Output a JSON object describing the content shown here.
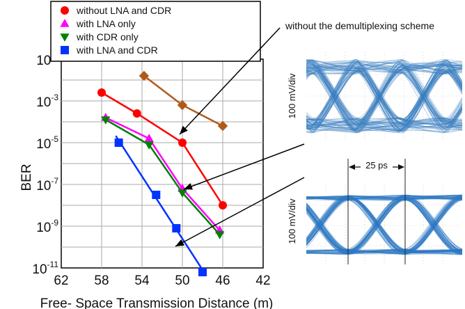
{
  "chart_data": {
    "type": "scatter",
    "title": "",
    "xlabel": "Free- Space Transmission Distance (m)",
    "ylabel": "BER",
    "xlim": [
      62,
      42
    ],
    "xticks": [
      "62",
      "58",
      "54",
      "50",
      "46",
      "42"
    ],
    "ylim_log10": [
      -11,
      -1
    ],
    "yticks": [
      {
        "base": "10",
        "exp": "-1",
        "value_log10": -1
      },
      {
        "base": "10",
        "exp": "-3",
        "value_log10": -3
      },
      {
        "base": "10",
        "exp": "-5",
        "value_log10": -5
      },
      {
        "base": "10",
        "exp": "-7",
        "value_log10": -7
      },
      {
        "base": "10",
        "exp": "-9",
        "value_log10": -9
      },
      {
        "base": "10",
        "exp": "-11",
        "value_log10": -11
      }
    ],
    "grid": true,
    "series": [
      {
        "name": "without LNA and CDR",
        "color": "#ff0000",
        "marker": "circle",
        "x": [
          58,
          54.5,
          50,
          46
        ],
        "log10_ber": [
          -2.6,
          -3.6,
          -5.0,
          -8.0
        ]
      },
      {
        "name": "with LNA only",
        "color": "#ff00ff",
        "marker": "triangle-up",
        "x": [
          57.6,
          53.3,
          50,
          46.3
        ],
        "log10_ber": [
          -3.8,
          -4.8,
          -7.2,
          -9.2
        ]
      },
      {
        "name": "with CDR only",
        "color": "#008000",
        "marker": "triangle-down",
        "x": [
          57.6,
          53.3,
          50,
          46.3
        ],
        "log10_ber": [
          -3.9,
          -5.1,
          -7.4,
          -9.4
        ]
      },
      {
        "name": "with LNA and CDR",
        "color": "#0033ff",
        "marker": "square",
        "x": [
          56.3,
          52.6,
          50.6,
          48.0
        ],
        "log10_ber": [
          -5.0,
          -7.5,
          -9.1,
          -11.2
        ]
      },
      {
        "name": "without the demultiplexing scheme",
        "color": "#b05a1a",
        "marker": "diamond",
        "x": [
          53.8,
          50,
          46
        ],
        "log10_ber": [
          -1.8,
          -3.2,
          -4.2
        ]
      }
    ],
    "legend_position": "top-left",
    "annotations": [
      "without the demultiplexing scheme",
      "100 mV/div",
      "100 mV/div",
      "25 ps"
    ]
  }
}
